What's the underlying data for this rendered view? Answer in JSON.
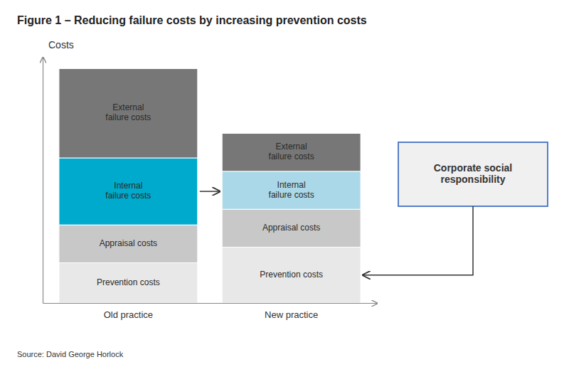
{
  "chart_data": {
    "type": "bar",
    "stacked": true,
    "title": "Figure 1 – Reducing failure costs by increasing prevention costs",
    "ylabel": "Costs",
    "categories": [
      "Old practice",
      "New practice"
    ],
    "series": [
      {
        "name": "Prevention costs",
        "color": "#e8e8e8",
        "values": [
          0.9,
          1.25
        ]
      },
      {
        "name": "Appraisal costs",
        "color": "#c8c8c8",
        "values": [
          0.85,
          0.85
        ]
      },
      {
        "name": "Internal\nfailure costs",
        "colors": [
          "#00aacc",
          "#aad8e8"
        ],
        "values": [
          1.5,
          0.85
        ]
      },
      {
        "name": "External\nfailure costs",
        "color": "#777777",
        "values": [
          2.0,
          0.85
        ]
      }
    ],
    "ylim": [
      0,
      5.5125
    ],
    "tick_labels": "x",
    "annotations": [
      "Corporate social\nresponsibility",
      "Source: David George Horlock"
    ]
  }
}
